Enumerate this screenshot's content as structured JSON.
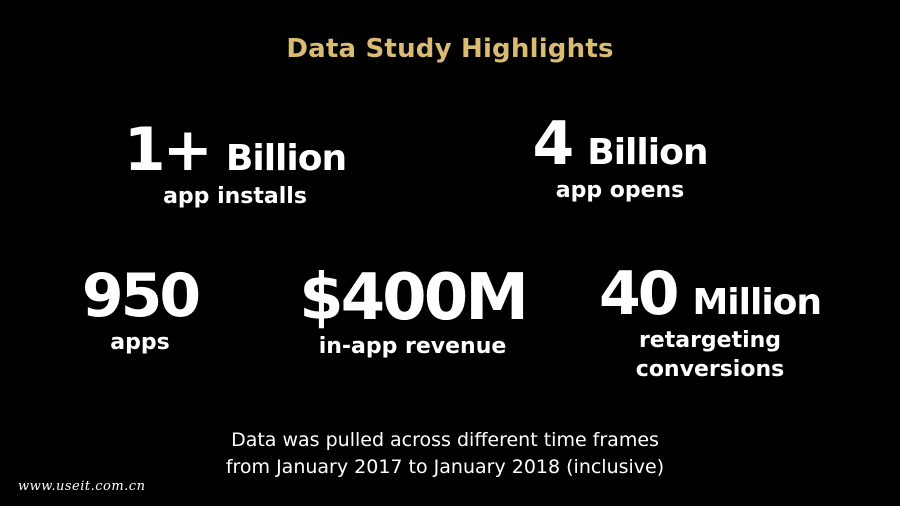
{
  "title": "Data Study Highlights",
  "colors": {
    "background": "#000000",
    "title": "#d9bb73",
    "text": "#ffffff"
  },
  "stats": {
    "installs": {
      "number": "1+",
      "unit": "Billion",
      "label": "app installs"
    },
    "opens": {
      "number": "4",
      "unit": "Billion",
      "label": "app opens"
    },
    "apps": {
      "number": "950",
      "label": "apps"
    },
    "revenue": {
      "number": "$400M",
      "label": "in-app revenue"
    },
    "retargeting": {
      "number": "40",
      "unit": "Million",
      "label_line1": "retargeting",
      "label_line2": "conversions"
    }
  },
  "footnote": {
    "line1": "Data was pulled across different time frames",
    "line2": "from January 2017 to January 2018 (inclusive)"
  },
  "watermark": "www.useit.com.cn"
}
